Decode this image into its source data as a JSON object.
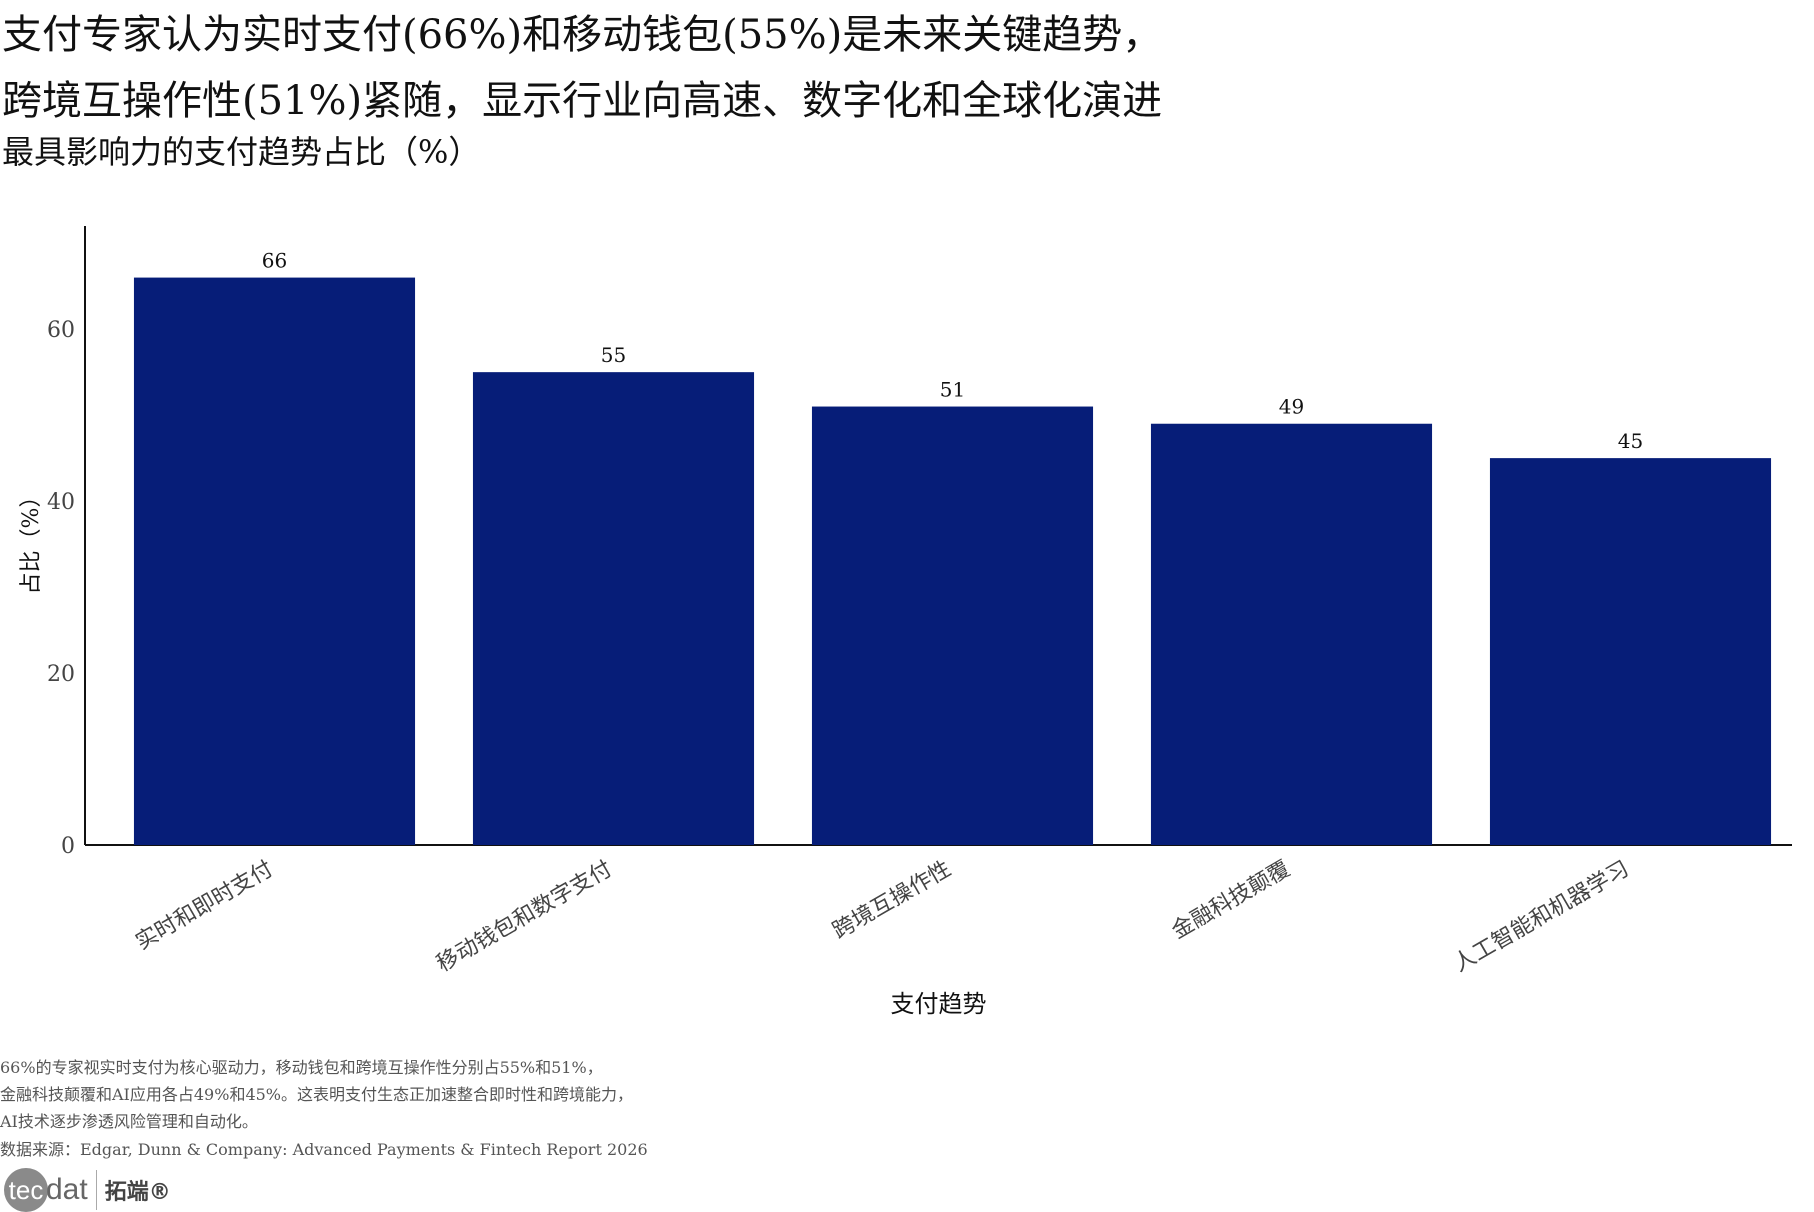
{
  "title_line1": "支付专家认为实时支付(66%)和移动钱包(55%)是未来关键趋势，",
  "title_line2": "跨境互操作性(51%)紧随，显示行业向高速、数字化和全球化演进",
  "subtitle": "最具影响力的支付趋势占比（%）",
  "chart_data": {
    "type": "bar",
    "categories": [
      "实时和即时支付",
      "移动钱包和数字支付",
      "跨境互操作性",
      "金融科技颠覆",
      "人工智能和机器学习"
    ],
    "values": [
      66,
      55,
      51,
      49,
      45
    ],
    "xlabel": "支付趋势",
    "ylabel": "占比（%）",
    "ylim": [
      0,
      72
    ],
    "yticks": [
      0,
      20,
      40,
      60
    ],
    "bar_color": "#061d78",
    "grid": false
  },
  "footer": {
    "note_lines": [
      "66%的专家视实时支付为核心驱动力，移动钱包和跨境互操作性分别占55%和51%，",
      "金融科技颠覆和AI应用各占49%和45%。这表明支付生态正加速整合即时性和跨境能力，",
      "AI技术逐步渗透风险管理和自动化。"
    ],
    "source": "数据来源：Edgar, Dunn & Company: Advanced Payments & Fintech Report 2026",
    "logo_tec": "tec",
    "logo_dat": "dat",
    "logo_cn": "拓端®"
  }
}
